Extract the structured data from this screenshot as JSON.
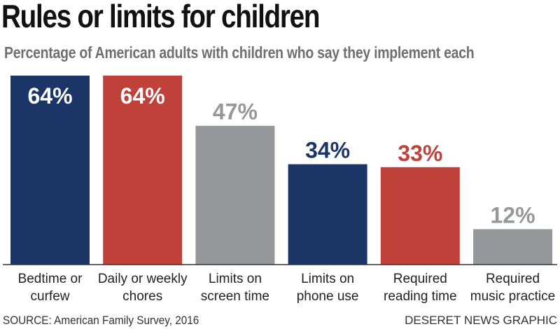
{
  "chart_data": {
    "type": "bar",
    "title": "Rules or limits for children",
    "subtitle": "Percentage of American adults with children who say they implement each",
    "categories": [
      [
        "Bedtime or",
        "curfew"
      ],
      [
        "Daily or weekly",
        "chores"
      ],
      [
        "Limits on",
        "screen time"
      ],
      [
        "Limits on",
        "phone use"
      ],
      [
        "Required",
        "reading time"
      ],
      [
        "Required",
        "music practice"
      ]
    ],
    "values": [
      64,
      64,
      47,
      34,
      33,
      12
    ],
    "value_labels": [
      "64%",
      "64%",
      "47%",
      "34%",
      "33%",
      "12%"
    ],
    "bar_colors": [
      "#1b3566",
      "#c0403a",
      "#96979b",
      "#1b3566",
      "#c0403a",
      "#96979b"
    ],
    "ylim": [
      0,
      64
    ],
    "grid": false,
    "legend": "none"
  },
  "footer": {
    "source": "SOURCE: American Family Survey, 2016",
    "credit": "DESERET NEWS GRAPHIC"
  }
}
